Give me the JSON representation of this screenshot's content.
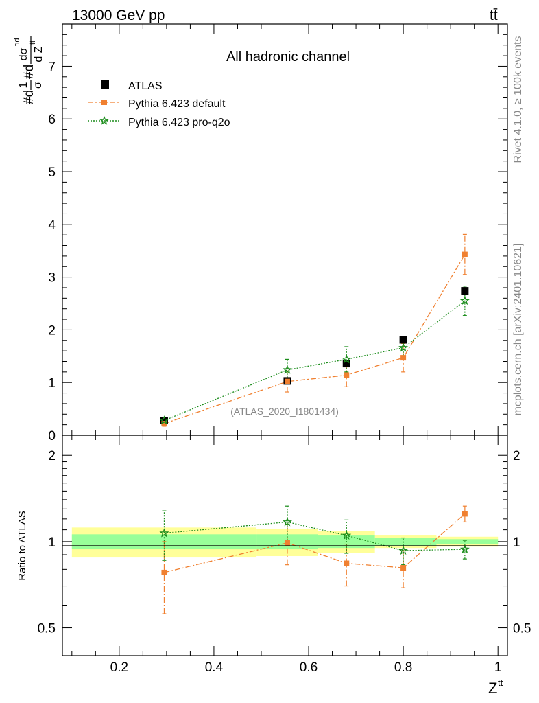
{
  "header": {
    "left": "13000 GeV pp",
    "right": "tt̄"
  },
  "side_labels": {
    "rivet": "Rivet 4.1.0, ≥ 100k events",
    "mcplots": "mcplots.cern.ch [arXiv:2401.10621]"
  },
  "chart_data": {
    "type": "scatter",
    "title": "All hadronic channel",
    "watermark": "(ATLAS_2020_I1801434)",
    "xlabel": "Z^tt",
    "xlabel_main": "Z",
    "xlabel_sup": "tt",
    "ylabel": "#d 1/σ #d dσ^fid / d Z^tt",
    "ylabel_parts": {
      "prefix1": "#d",
      "frac1_num": "1",
      "frac1_den": "σ",
      "prefix2": "#d",
      "frac2_num": "dσ",
      "frac2_num_sup": "fid",
      "frac2_den": "d Z",
      "frac2_den_sup": "tt"
    },
    "ratio_ylabel": "Ratio to ATLAS",
    "xlim": [
      0.08,
      1.02
    ],
    "ylim": [
      0,
      7.8
    ],
    "ratio_ylim": [
      0.4,
      2.35
    ],
    "ratio_scale": "log",
    "xticks": [
      0.2,
      0.4,
      0.6,
      0.8,
      1
    ],
    "xtick_labels": [
      "0.2",
      "0.4",
      "0.6",
      "0.8",
      "1"
    ],
    "yticks": [
      0,
      1,
      2,
      3,
      4,
      5,
      6,
      7
    ],
    "ytick_labels": [
      "0",
      "1",
      "2",
      "3",
      "4",
      "5",
      "6",
      "7"
    ],
    "ratio_yticks": [
      0.5,
      1,
      2
    ],
    "ratio_ytick_labels": [
      "0.5",
      "1",
      "2"
    ],
    "legend": [
      {
        "name": "ATLAS",
        "color": "#000000",
        "marker": "square",
        "line": "none"
      },
      {
        "name": "Pythia 6.423 default",
        "color": "#f08030",
        "marker": "square",
        "line": "dashdot"
      },
      {
        "name": "Pythia 6.423 pro-q2o",
        "color": "#1a8c1a",
        "marker": "star",
        "line": "dotted"
      }
    ],
    "data": {
      "x": [
        0.295,
        0.555,
        0.68,
        0.8,
        0.93
      ],
      "y": [
        0.28,
        1.03,
        1.36,
        1.81,
        2.74
      ],
      "bin_edges": [
        0.1,
        0.49,
        0.62,
        0.74,
        0.87,
        1.0
      ]
    },
    "series": [
      {
        "name": "Pythia 6.423 default",
        "x": [
          0.295,
          0.555,
          0.68,
          0.8,
          0.93
        ],
        "values": [
          0.22,
          1.02,
          1.14,
          1.47,
          3.43
        ],
        "err": [
          0.05,
          0.2,
          0.22,
          0.27,
          0.38
        ],
        "ratio": [
          0.78,
          0.99,
          0.84,
          0.81,
          1.25
        ],
        "ratio_err": [
          0.22,
          0.16,
          0.14,
          0.12,
          0.08
        ]
      },
      {
        "name": "Pythia 6.423 pro-q2o",
        "x": [
          0.295,
          0.555,
          0.68,
          0.8,
          0.93
        ],
        "values": [
          0.28,
          1.24,
          1.44,
          1.66,
          2.55
        ],
        "err": [
          0.05,
          0.2,
          0.24,
          0.2,
          0.28
        ],
        "ratio": [
          1.07,
          1.17,
          1.05,
          0.93,
          0.94
        ],
        "ratio_err": [
          0.21,
          0.16,
          0.14,
          0.1,
          0.07
        ]
      }
    ],
    "bands": {
      "bin_edges": [
        0.1,
        0.49,
        0.62,
        0.74,
        0.87,
        1.0
      ],
      "yellow": [
        [
          0.88,
          1.12
        ],
        [
          0.89,
          1.11
        ],
        [
          0.91,
          1.09
        ],
        [
          0.95,
          1.05
        ],
        [
          0.96,
          1.04
        ]
      ],
      "green": [
        [
          0.94,
          1.06
        ],
        [
          0.94,
          1.06
        ],
        [
          0.95,
          1.05
        ],
        [
          0.97,
          1.03
        ],
        [
          0.98,
          1.02
        ]
      ],
      "yellow_color": "#ffff99",
      "green_color": "#99ff99"
    }
  }
}
